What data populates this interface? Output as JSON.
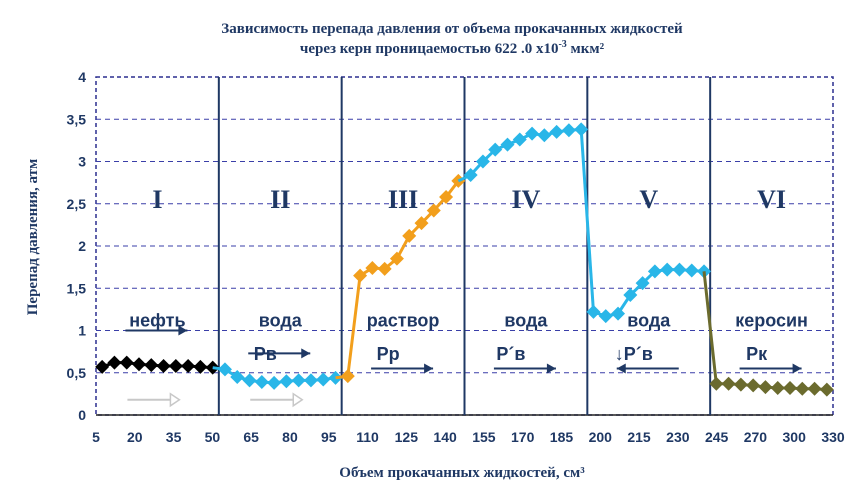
{
  "chart_data": {
    "type": "line",
    "title_line1": "Зависимость перепада давления от объема прокачанных жидкостей",
    "title_line2": "через керн проницаемостью 622 .0 x10",
    "title_sup": "-3",
    "title_unit": " мкм²",
    "xlabel": "Объем прокачанных жидкостей, см³",
    "ylabel": "Перепад давления,  атм",
    "ylim": [
      0,
      4
    ],
    "yticks": [
      "0",
      "0,5",
      "1",
      "1,5",
      "2",
      "2,5",
      "3",
      "3,5",
      "4"
    ],
    "xtick_labels": [
      "5",
      "20",
      "35",
      "50",
      "65",
      "80",
      "95",
      "110",
      "125",
      "140",
      "155",
      "170",
      "185",
      "200",
      "215",
      "230",
      "245",
      "270",
      "300",
      "330"
    ],
    "grid": true,
    "stages": [
      {
        "roman": "I",
        "fluid": "нефть",
        "pressure_label": ""
      },
      {
        "roman": "II",
        "fluid": "вода",
        "pressure_label": "Рв"
      },
      {
        "roman": "III",
        "fluid": "раствор",
        "pressure_label": "Рр"
      },
      {
        "roman": "IV",
        "fluid": "вода",
        "pressure_label": "Р´в"
      },
      {
        "roman": "V",
        "fluid": "вода",
        "pressure_label": "↓Р´в"
      },
      {
        "roman": "VI",
        "fluid": "керосин",
        "pressure_label": "Рк"
      }
    ],
    "series": [
      {
        "color": "#000000",
        "x": [
          5,
          10,
          15,
          20,
          25,
          30,
          35,
          40,
          45,
          50
        ],
        "y": [
          0.57,
          0.62,
          0.62,
          0.6,
          0.59,
          0.58,
          0.58,
          0.58,
          0.57,
          0.56
        ]
      },
      {
        "color": "#29b6e8",
        "x": [
          55,
          60,
          65,
          70,
          75,
          80,
          85,
          90,
          95,
          100
        ],
        "y": [
          0.54,
          0.45,
          0.41,
          0.39,
          0.38,
          0.4,
          0.41,
          0.41,
          0.42,
          0.44
        ]
      },
      {
        "color": "#f29f1c",
        "x": [
          104,
          110,
          115,
          120,
          125,
          130,
          135,
          140,
          145,
          150
        ],
        "y": [
          0.46,
          1.65,
          1.74,
          1.73,
          1.85,
          2.12,
          2.27,
          2.42,
          2.58,
          2.77
        ]
      },
      {
        "color": "#29b6e8",
        "x": [
          155,
          160,
          165,
          170,
          175,
          180,
          185,
          190,
          195,
          200
        ],
        "y": [
          2.84,
          3.0,
          3.14,
          3.2,
          3.26,
          3.33,
          3.31,
          3.35,
          3.37,
          3.38
        ]
      },
      {
        "color": "#29b6e8",
        "x": [
          205,
          210,
          215,
          220,
          225,
          230,
          235,
          240,
          245,
          250
        ],
        "y": [
          1.22,
          1.17,
          1.2,
          1.42,
          1.56,
          1.7,
          1.72,
          1.72,
          1.71,
          1.7
        ]
      },
      {
        "color": "#6b6b2e",
        "x": [
          255,
          265,
          275,
          285,
          295,
          305,
          315,
          325,
          335,
          345
        ],
        "y": [
          0.37,
          0.37,
          0.36,
          0.35,
          0.33,
          0.32,
          0.32,
          0.31,
          0.31,
          0.3
        ]
      }
    ]
  }
}
